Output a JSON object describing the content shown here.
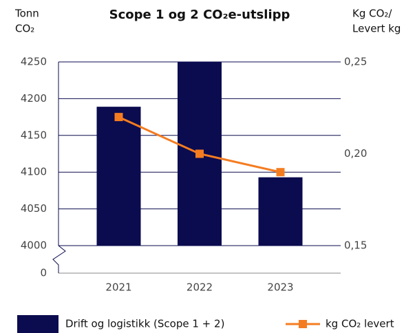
{
  "chart_data": {
    "type": "bar_line",
    "title": "Scope 1 og 2 CO₂e-utslipp",
    "ylabel": [
      "Tonn",
      "CO₂"
    ],
    "y2label": [
      "Kg CO₂/",
      "Levert kg"
    ],
    "categories": [
      "2021",
      "2022",
      "2023"
    ],
    "series": [
      {
        "name": "Drift og logistikk (Scope 1 + 2)",
        "type": "bar",
        "color": "#0b0b4f",
        "values": [
          4189,
          4250,
          4093
        ]
      },
      {
        "name": "kg CO₂ levert",
        "type": "line",
        "color": "#f47c20",
        "axis": "y2",
        "values": [
          0.22,
          0.2,
          0.19
        ]
      }
    ],
    "ylim": [
      4000,
      4250
    ],
    "yticks": [
      4000,
      4050,
      4100,
      4150,
      4200,
      4250
    ],
    "ybreak_tick": 0,
    "y2lim": [
      0.15,
      0.25
    ],
    "y2ticks": [
      {
        "value": 0.15,
        "label": "0,15"
      },
      {
        "value": 0.2,
        "label": "0,20"
      },
      {
        "value": 0.25,
        "label": "0,25"
      }
    ],
    "grid": true
  }
}
